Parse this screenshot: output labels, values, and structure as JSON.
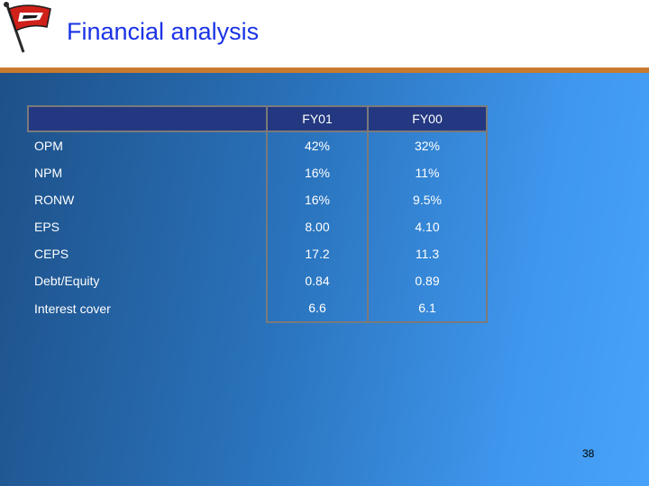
{
  "slide": {
    "title": "Financial analysis",
    "page_number": "38"
  },
  "table": {
    "header": {
      "label": "",
      "col1": "FY01",
      "col2": "FY00"
    },
    "rows": [
      {
        "label": "OPM",
        "fy01": "42%",
        "fy00": "32%"
      },
      {
        "label": "NPM",
        "fy01": "16%",
        "fy00": "11%"
      },
      {
        "label": "RONW",
        "fy01": "16%",
        "fy00": "9.5%"
      },
      {
        "label": "EPS",
        "fy01": "8.00",
        "fy00": "4.10"
      },
      {
        "label": "CEPS",
        "fy01": "17.2",
        "fy00": "11.3"
      },
      {
        "label": "Debt/Equity",
        "fy01": "0.84",
        "fy00": "0.89"
      },
      {
        "label": "Interest cover",
        "fy01": "6.6",
        "fy00": "6.1"
      }
    ]
  },
  "colors": {
    "title": "#1a33e6",
    "accent_bar": "#c97a2d",
    "header_fill": "#233880",
    "flag_red": "#d0201a"
  },
  "logo": {
    "icon": "flag-icon"
  }
}
